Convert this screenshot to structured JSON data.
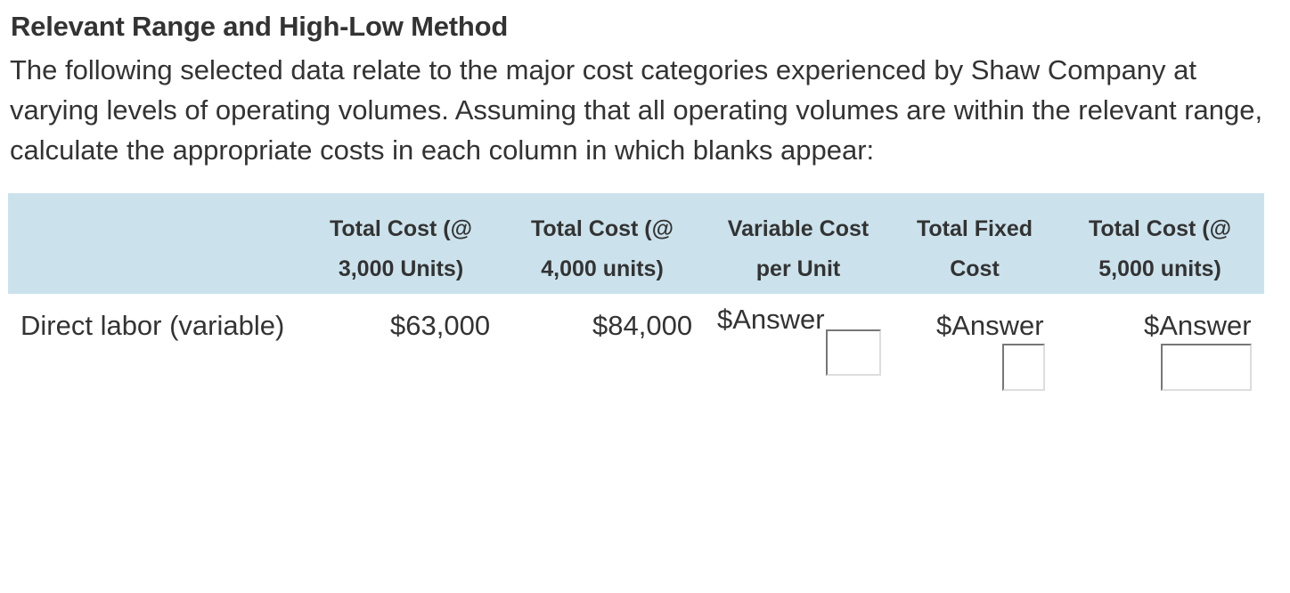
{
  "title": "Relevant Range and High-Low Method",
  "intro": "The following selected data relate to the major cost categories experienced by Shaw Company at varying levels of operating volumes. Assuming that all operating volumes are within the relevant range, calculate the appropriate costs in each column in which blanks appear:",
  "table": {
    "headers": [
      {
        "line1": "Total Cost (@",
        "line2": "3,000 Units)"
      },
      {
        "line1": "Total Cost (@",
        "line2": "4,000 units)"
      },
      {
        "line1": "Variable Cost",
        "line2": "per Unit"
      },
      {
        "line1": "Total Fixed",
        "line2": "Cost"
      },
      {
        "line1": "Total Cost (@",
        "line2": "5,000 units)"
      }
    ],
    "rows": [
      {
        "label": "Direct labor (variable)",
        "cost_3000": "$63,000",
        "cost_4000": "$84,000",
        "variable_cost_per_unit": {
          "prefix": "$Answer",
          "value": ""
        },
        "total_fixed_cost": {
          "prefix": "$Answer",
          "value": ""
        },
        "cost_5000": {
          "prefix": "$Answer",
          "value": ""
        }
      }
    ]
  },
  "colors": {
    "header_background": "#cbe2ec",
    "text": "#333333"
  }
}
